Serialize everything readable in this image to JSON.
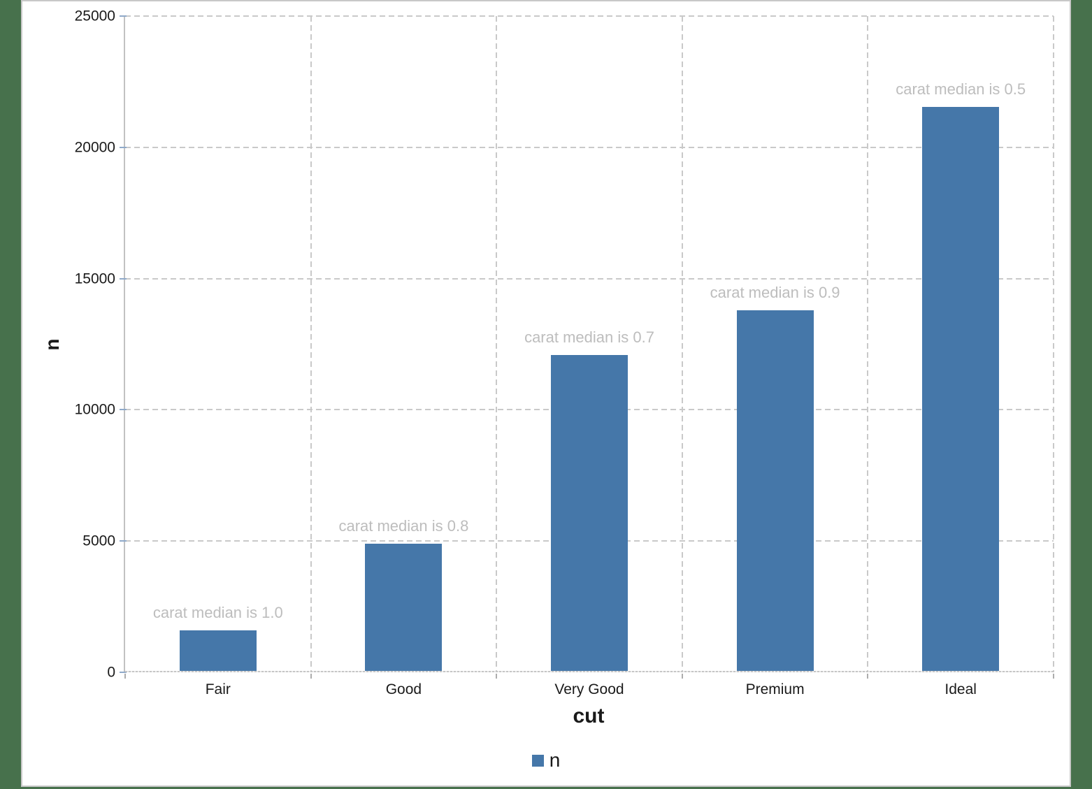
{
  "page": {
    "background_color": "#47714C",
    "panel_color": "#FFFFFF",
    "panel_border_color": "#C8C8C8"
  },
  "chart_data": {
    "type": "bar",
    "title": "",
    "xlabel": "cut",
    "ylabel": "n",
    "categories": [
      "Fair",
      "Good",
      "Very Good",
      "Premium",
      "Ideal"
    ],
    "values": [
      1610,
      4906,
      12082,
      13791,
      21551
    ],
    "annotations": [
      "carat median is 1.0",
      "carat median is 0.8",
      "carat median is 0.7",
      "carat median is 0.9",
      "carat median is 0.5"
    ],
    "ylim": [
      0,
      25000
    ],
    "yticks": [
      0,
      5000,
      10000,
      15000,
      20000,
      25000
    ],
    "grid": "dashed",
    "bar_color": "#4577A9",
    "annotation_color": "#BDBDBD",
    "axis_color": "#C2C2C2",
    "grid_color": "#C9C9C9",
    "text_color": "#1A1A1A",
    "legend": {
      "position": "bottom",
      "items": [
        {
          "label": "n",
          "color": "#4577A9"
        }
      ]
    }
  }
}
